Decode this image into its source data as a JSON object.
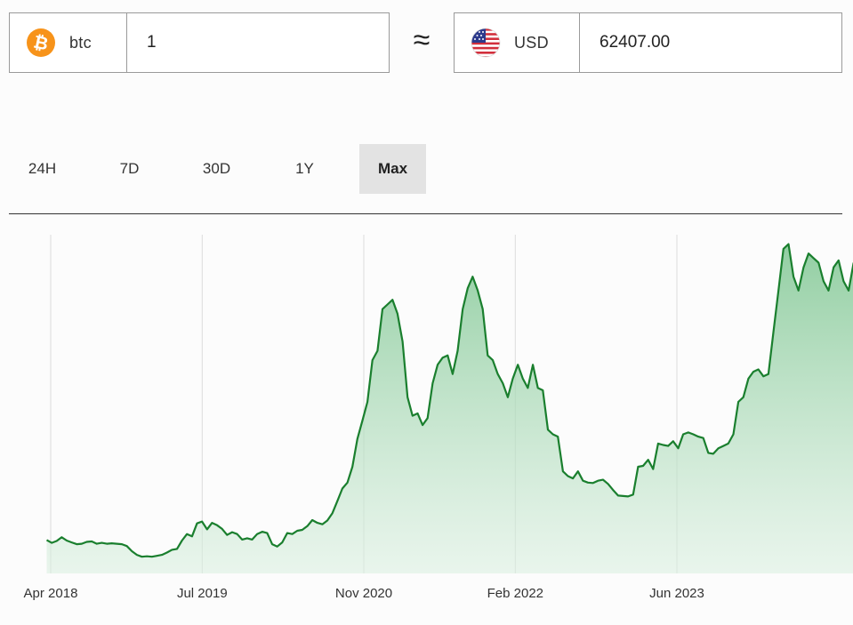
{
  "converter": {
    "from": {
      "code": "btc",
      "icon": "bitcoin-icon",
      "amount": "1",
      "color": "#f7931a"
    },
    "approx_symbol": "≈",
    "to": {
      "code": "USD",
      "icon": "us-flag-icon",
      "amount": "62407.00"
    }
  },
  "tabs": [
    {
      "label": "24H",
      "active": false
    },
    {
      "label": "7D",
      "active": false
    },
    {
      "label": "30D",
      "active": false
    },
    {
      "label": "1Y",
      "active": false
    },
    {
      "label": "Max",
      "active": true
    }
  ],
  "chart_data": {
    "type": "area",
    "title": "",
    "xlabel": "",
    "ylabel": "",
    "grid": "vertical",
    "line_color": "#1a7f2e",
    "fill_color": "#a7d7b0",
    "x_ticks": [
      "Apr 2018",
      "Jul 2019",
      "Nov 2020",
      "Feb 2022",
      "Jun 2023"
    ],
    "x_tick_months": [
      0,
      15,
      31,
      46,
      62
    ],
    "x_range_months": [
      -1,
      82
    ],
    "ylim": [
      0,
      74000
    ],
    "y": [
      7200,
      6600,
      7000,
      7800,
      7100,
      6700,
      6300,
      6400,
      6800,
      6900,
      6400,
      6600,
      6400,
      6500,
      6400,
      6300,
      5900,
      4800,
      4000,
      3600,
      3700,
      3600,
      3800,
      4000,
      4500,
      5100,
      5300,
      7100,
      8500,
      8000,
      10800,
      11200,
      9500,
      10900,
      10400,
      9600,
      8300,
      8900,
      8500,
      7300,
      7600,
      7300,
      8500,
      9000,
      8700,
      6300,
      5800,
      6700,
      8700,
      8500,
      9200,
      9400,
      10200,
      11500,
      10900,
      10600,
      11400,
      13000,
      15600,
      18300,
      19600,
      23000,
      29000,
      33000,
      37000,
      46000,
      48000,
      57000,
      58000,
      59000,
      56000,
      50000,
      38000,
      34000,
      34500,
      32000,
      33500,
      41000,
      45000,
      46500,
      47000,
      43000,
      48000,
      57000,
      61500,
      64000,
      61000,
      57000,
      47000,
      46000,
      43000,
      41000,
      38000,
      42000,
      45000,
      42000,
      40000,
      45000,
      40000,
      39500,
      31000,
      30000,
      29500,
      22000,
      21000,
      20500,
      22000,
      20000,
      19600,
      19500,
      20000,
      20200,
      19300,
      18000,
      16800,
      16700,
      16600,
      17000,
      23000,
      23200,
      24500,
      22500,
      28000,
      27700,
      27500,
      28500,
      27000,
      30000,
      30400,
      30000,
      29500,
      29200,
      26000,
      25800,
      27000,
      27500,
      28000,
      30000,
      37000,
      38000,
      42000,
      43500,
      44000,
      42500,
      43000,
      52000,
      61000,
      70000,
      71000,
      64000,
      61000,
      66000,
      69000,
      68000,
      67000,
      63000,
      61000,
      66000,
      67500,
      63000,
      61000,
      67000
    ],
    "x_start_month": -0.4,
    "x_end_month": 79.5
  }
}
